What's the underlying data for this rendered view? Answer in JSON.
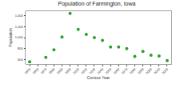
{
  "chart_data": {
    "type": "scatter",
    "title": "Population of Farmington, Iowa",
    "x_label": "Census Year",
    "y_label": "Population",
    "x": [
      1850,
      1870,
      1880,
      1890,
      1900,
      1910,
      1920,
      1930,
      1940,
      1950,
      1960,
      1970,
      1980,
      1990,
      2000,
      2010,
      2020
    ],
    "values": [
      560,
      640,
      780,
      1010,
      1440,
      1150,
      1060,
      1000,
      950,
      830,
      830,
      800,
      660,
      750,
      680,
      664,
      583
    ],
    "color": "#2ca02c",
    "marker": "circle",
    "xlim": [
      1845,
      2025
    ],
    "xticks": [
      1850,
      1860,
      1870,
      1880,
      1890,
      1900,
      1910,
      1920,
      1930,
      1940,
      1950,
      1960,
      1970,
      1980,
      1990,
      2000,
      2010,
      2020
    ],
    "ylim": [
      520,
      1480
    ],
    "yticks": [
      600,
      800,
      {
        "value": 1000,
        "label": "1,000"
      },
      {
        "value": 1200,
        "label": "1,200"
      },
      {
        "value": 1400,
        "label": "1,400"
      }
    ],
    "grid": false
  }
}
